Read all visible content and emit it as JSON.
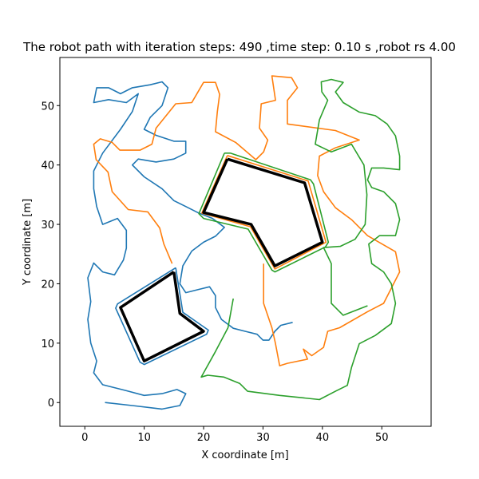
{
  "chart_data": {
    "type": "line",
    "title": "The robot path with iteration steps: 490 ,time step: 0.10 s ,robot rs 4.00",
    "x_label": "X coordinate [m]",
    "y_label": "Y coordinate [m]",
    "xlim": [
      -4.2,
      58.3
    ],
    "ylim": [
      -4.0,
      58.1
    ],
    "xticks": [
      0,
      10,
      20,
      30,
      40,
      50
    ],
    "yticks": [
      0,
      10,
      20,
      30,
      40,
      50
    ],
    "series": [
      {
        "color": "#1f77b4",
        "x": [
          3.4,
          8,
          13,
          16,
          17,
          15.5,
          13,
          10,
          7,
          3,
          1.5,
          2,
          1,
          0.5,
          1,
          0.5,
          1.5,
          3,
          5,
          6.5,
          7,
          7,
          5.5,
          3,
          2,
          1.5,
          1.5,
          3,
          6,
          8,
          9,
          7,
          4,
          1.5,
          2,
          4,
          6,
          8,
          11,
          13,
          14,
          13,
          11,
          10,
          12,
          15,
          17,
          17,
          15,
          12,
          9,
          8,
          10,
          13,
          15,
          17,
          19,
          21.5,
          23.5,
          22,
          20,
          18,
          16.5,
          16,
          17,
          19,
          21,
          22,
          22,
          23,
          25,
          27,
          29,
          30,
          31,
          32,
          33,
          35,
          null,
          15.3,
          16.5,
          20.8,
          20.5,
          10,
          9.3,
          5.2,
          5.5,
          15.3
        ],
        "y": [
          0,
          -0.5,
          -1.1,
          -0.5,
          1.5,
          2.2,
          1.5,
          1.2,
          2,
          3,
          5,
          7,
          10,
          14,
          17,
          21,
          23.5,
          22,
          21.5,
          24,
          26,
          29,
          31,
          30,
          33,
          36,
          39,
          42,
          46,
          49,
          52,
          50.5,
          51,
          50.5,
          53,
          53,
          52,
          53,
          53.5,
          54,
          53,
          50,
          48,
          46,
          45,
          44,
          44,
          42,
          41,
          40.5,
          41,
          40,
          38,
          36,
          34,
          33,
          32,
          31,
          29.5,
          28,
          27,
          25.5,
          23,
          20,
          18.5,
          19,
          19.5,
          18,
          16,
          14,
          12.5,
          12,
          11.5,
          10.5,
          10.5,
          12,
          13,
          13.5,
          null,
          22.7,
          15.2,
          12.2,
          11.5,
          6.4,
          6.8,
          15.9,
          16.6,
          22.7
        ]
      },
      {
        "color": "#ff7f0e",
        "x": [
          14.7,
          13.3,
          12.6,
          10.6,
          7.3,
          4.6,
          3.9,
          1.9,
          1.5,
          2.6,
          4.6,
          5.9,
          9.3,
          11.3,
          12,
          15.3,
          18,
          20,
          22,
          22.7,
          22.3,
          22,
          25.4,
          28.8,
          30.1,
          30.8,
          29.4,
          29.7,
          32.1,
          31.5,
          34.8,
          35.8,
          34.1,
          34.1,
          42.2,
          46.2,
          42.2,
          39.5,
          39.2,
          40.2,
          42.2,
          44.9,
          47.6,
          52.3,
          53,
          50.3,
          47.6,
          42.9,
          40.9,
          40.2,
          38.2,
          36.8,
          37.5,
          34.1,
          32.8,
          32.1,
          31.5,
          30.1,
          30.1,
          null,
          24,
          37.6,
          40.6,
          32,
          27.9,
          19.7,
          24
        ],
        "y": [
          23.4,
          26.7,
          29.4,
          32.1,
          32.5,
          35.5,
          38.8,
          40.9,
          43.5,
          44.4,
          43.8,
          42.5,
          42.5,
          43.5,
          46.2,
          50.3,
          50.5,
          53.9,
          53.9,
          51.9,
          48.9,
          45.6,
          43.8,
          40.9,
          42.2,
          44.2,
          46.2,
          50.3,
          50.9,
          55,
          54.7,
          53,
          50.9,
          46.9,
          45.8,
          44.2,
          42.9,
          41.5,
          38.2,
          35.5,
          32.8,
          30.8,
          28.1,
          25.4,
          22,
          16.7,
          15.3,
          12.6,
          12,
          9.3,
          7.9,
          9,
          7.3,
          6.6,
          6.2,
          9.9,
          12.6,
          16.7,
          23.4,
          null,
          41.6,
          37.3,
          27,
          22.5,
          29.6,
          31.9,
          41.6
        ]
      },
      {
        "color": "#2ca02c",
        "x": [
          25,
          24.1,
          22,
          19.6,
          20.7,
          23.4,
          26.1,
          27.4,
          32.8,
          39.5,
          42.2,
          44.2,
          44.9,
          46.2,
          48.9,
          51.6,
          52.3,
          51.6,
          50.3,
          48.3,
          47.8,
          49.6,
          52.3,
          53,
          52.3,
          50.3,
          48.3,
          47.6,
          48.3,
          50.3,
          53,
          53,
          52.3,
          50.9,
          48.9,
          46.2,
          43.5,
          42.2,
          43.5,
          41.5,
          39.8,
          39.9,
          40.9,
          39.5,
          38.8,
          41.5,
          44.9,
          47,
          47.5,
          47.2,
          45.5,
          43,
          40.2,
          41.5,
          41.5,
          43.5,
          47.6,
          null,
          23.5,
          24.5,
          38,
          38.5,
          41,
          40.5,
          32,
          31.5,
          27.5,
          20,
          19.2,
          23.5
        ],
        "y": [
          17.5,
          12.6,
          8.6,
          4.3,
          4.6,
          4.3,
          3.2,
          1.9,
          1.2,
          0.5,
          1.9,
          2.9,
          5.9,
          9.9,
          11.3,
          13.3,
          16.7,
          20,
          22,
          23.4,
          26.7,
          28.1,
          28.1,
          30.8,
          33.5,
          35.5,
          36.2,
          37.5,
          39.5,
          39.5,
          39.2,
          41.5,
          44.9,
          46.9,
          48.3,
          48.9,
          50.5,
          52.3,
          53.9,
          54.4,
          54,
          52.3,
          50.9,
          47.6,
          43.5,
          42.2,
          43.5,
          40,
          35,
          30,
          27.5,
          26.3,
          26.1,
          23.4,
          16.7,
          14.7,
          16.3,
          null,
          42,
          42,
          37.5,
          36.8,
          27,
          26.2,
          22,
          22.3,
          29.2,
          31,
          31.8,
          42
        ]
      }
    ],
    "obstacles": {
      "color": "#000000",
      "items": [
        {
          "x": [
            15,
            16,
            20,
            10,
            6,
            15
          ],
          "y": [
            22,
            15,
            12,
            7,
            16,
            22
          ]
        },
        {
          "x": [
            24,
            37,
            40,
            32,
            28,
            20,
            24
          ],
          "y": [
            41,
            37,
            27,
            23,
            30,
            32,
            41
          ]
        }
      ]
    }
  }
}
